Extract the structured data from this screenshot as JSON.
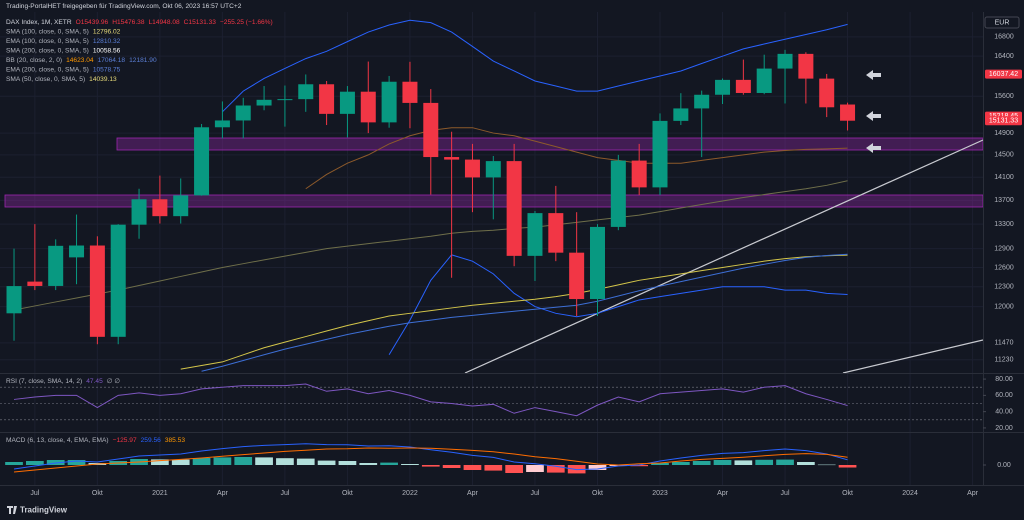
{
  "header": {
    "shared_by": "Trading-PortalHET freigegeben für TradingView.com, Okt 06, 2023 16:57 UTC+2",
    "currency": "EUR",
    "brand": "TradingView"
  },
  "chart_data": [
    {
      "type": "candlestick",
      "log_scale": true,
      "grid": true,
      "up_color": "#089981",
      "down_color": "#f23645",
      "categories": [
        null,
        "Jul",
        null,
        null,
        "Okt",
        null,
        null,
        "2021",
        null,
        null,
        "Apr",
        null,
        null,
        "Jul",
        null,
        null,
        "Okt",
        null,
        null,
        "2022",
        null,
        null,
        "Apr",
        null,
        null,
        "Jul",
        null,
        null,
        "Okt",
        null,
        null,
        "2023",
        null,
        null,
        "Apr",
        null,
        null,
        "Jul",
        null,
        null,
        "Okt",
        null,
        null,
        "2024",
        null,
        null,
        "Apr"
      ],
      "open": [
        11900,
        12380,
        12313,
        12760,
        12950,
        11556,
        13291,
        13719,
        13433,
        13786,
        15008,
        15136,
        15421,
        15531,
        15544,
        15835,
        15261,
        15689,
        15100,
        15885,
        15471,
        14461,
        14415,
        14098,
        14388,
        12784,
        13484,
        12835,
        12114,
        13254,
        14397,
        13924,
        15128,
        15365,
        15629,
        15922,
        15664,
        16148,
        16447,
        15947,
        15439.96,
        null,
        null,
        null,
        null,
        null,
        null
      ],
      "high": [
        12900,
        13300,
        13050,
        13460,
        13100,
        13300,
        13900,
        14130,
        14080,
        15070,
        15500,
        15570,
        15800,
        15810,
        16030,
        15900,
        15800,
        16290,
        16000,
        16285,
        15740,
        14925,
        14700,
        14480,
        14700,
        13520,
        13950,
        13500,
        13300,
        14500,
        14700,
        15270,
        15660,
        15710,
        15950,
        16330,
        16430,
        16530,
        16480,
        16040,
        15476.38,
        null,
        null,
        null,
        null,
        null,
        null
      ],
      "low": [
        11500,
        12250,
        12250,
        12340,
        11450,
        11450,
        13060,
        13310,
        13310,
        13780,
        14800,
        14800,
        15330,
        15020,
        15300,
        15050,
        14820,
        14900,
        15000,
        14990,
        13800,
        12439,
        13500,
        13380,
        12620,
        12390,
        12700,
        11860,
        11860,
        13200,
        13790,
        13790,
        15050,
        14460,
        15450,
        15630,
        15640,
        15460,
        15460,
        15200,
        14948.08,
        null,
        null,
        null,
        null,
        null,
        null
      ],
      "close": [
        12311,
        12313,
        12945,
        12950,
        11556,
        13291,
        13719,
        13433,
        13786,
        15008,
        15136,
        15421,
        15531,
        15544,
        15835,
        15261,
        15689,
        15100,
        15885,
        15471,
        14461,
        14415,
        14098,
        14388,
        12784,
        13484,
        12835,
        12114,
        13254,
        14397,
        13924,
        15128,
        15365,
        15629,
        15922,
        15664,
        16148,
        16447,
        15947,
        15387,
        15131.33,
        null,
        null,
        null,
        null,
        null,
        null
      ],
      "series": [
        {
          "color": "#2962ff",
          "values": [
            null,
            null,
            null,
            null,
            null,
            null,
            null,
            null,
            null,
            null,
            15300,
            15700,
            15950,
            16150,
            16350,
            16500,
            16700,
            16900,
            17050,
            17150,
            17100,
            16900,
            16600,
            16300,
            16100,
            15900,
            15800,
            15700,
            15700,
            15800,
            15900,
            16000,
            16100,
            16250,
            16400,
            16550,
            16650,
            16750,
            16850,
            16950,
            17064.18,
            null,
            null,
            null,
            null,
            null,
            null
          ]
        },
        {
          "color": "#2962ff",
          "values": [
            null,
            null,
            null,
            null,
            null,
            null,
            null,
            null,
            null,
            null,
            null,
            null,
            null,
            null,
            null,
            null,
            null,
            null,
            11300,
            11800,
            12400,
            12800,
            12700,
            12500,
            12200,
            12000,
            11900,
            11850,
            11900,
            12000,
            12100,
            12150,
            12200,
            12250,
            12300,
            12300,
            12300,
            12250,
            12250,
            12200,
            12181.9,
            null,
            null,
            null,
            null,
            null,
            null
          ]
        },
        {
          "color": "#8d5a2b",
          "values": [
            null,
            null,
            null,
            null,
            null,
            null,
            null,
            null,
            null,
            null,
            null,
            null,
            null,
            null,
            13900,
            14150,
            14350,
            14500,
            14700,
            14850,
            14950,
            15000,
            15000,
            14900,
            14850,
            14750,
            14650,
            14550,
            14450,
            14400,
            14350,
            14350,
            14350,
            14400,
            14450,
            14500,
            14550,
            14580,
            14600,
            14610,
            14623.04,
            null,
            null,
            null,
            null,
            null,
            null
          ]
        },
        {
          "color": "#d4c64a",
          "values": [
            null,
            null,
            null,
            null,
            null,
            null,
            null,
            null,
            11100,
            11150,
            11200,
            11300,
            11400,
            11480,
            11560,
            11640,
            11720,
            11790,
            11860,
            11900,
            11940,
            11980,
            12020,
            12050,
            12080,
            12110,
            12150,
            12200,
            12260,
            12330,
            12400,
            12450,
            12500,
            12550,
            12600,
            12650,
            12700,
            12740,
            12770,
            12785,
            12796.02,
            null,
            null,
            null,
            null,
            null,
            null
          ]
        },
        {
          "color": "#3d6fd6",
          "values": [
            null,
            null,
            null,
            null,
            null,
            null,
            null,
            null,
            null,
            11070,
            11140,
            11220,
            11300,
            11380,
            11450,
            11520,
            11590,
            11650,
            11710,
            11760,
            11800,
            11840,
            11870,
            11900,
            11930,
            11960,
            11990,
            12020,
            12080,
            12160,
            12240,
            12310,
            12380,
            12450,
            12520,
            12590,
            12650,
            12710,
            12760,
            12790,
            12810.32,
            null,
            null,
            null,
            null,
            null,
            null
          ]
        },
        {
          "color": "#6f6f4a",
          "values": [
            11950,
            12010,
            12070,
            12130,
            12190,
            12250,
            12320,
            12390,
            12460,
            12530,
            12600,
            12660,
            12720,
            12780,
            12840,
            12900,
            12940,
            12980,
            13020,
            13060,
            13100,
            13150,
            13180,
            13200,
            13230,
            13250,
            13290,
            13330,
            13370,
            13410,
            13450,
            13510,
            13570,
            13630,
            13690,
            13750,
            13800,
            13850,
            13900,
            13960,
            14039.13,
            null,
            null,
            null,
            null,
            null,
            null
          ]
        }
      ],
      "ylim": [
        11060,
        17590
      ],
      "yticks": [
        11230,
        11470,
        12000,
        12300,
        12600,
        12900,
        13300,
        13700,
        14100,
        14500,
        14900,
        15600,
        16400,
        16800
      ],
      "price_tags": [
        {
          "value": 16037.42,
          "color": "#f23645"
        },
        {
          "value": 15218.45,
          "color": "#f23645"
        },
        {
          "value": 15131.33,
          "color": "#f23645"
        }
      ],
      "legend": [
        [
          {
            "text": "DAX Index, 1M, XETR",
            "color": "#d1d4dc"
          },
          {
            "text": "O15439.96",
            "color": "#f23645"
          },
          {
            "text": "H15476.38",
            "color": "#f23645"
          },
          {
            "text": "L14948.08",
            "color": "#f23645"
          },
          {
            "text": "C15131.33",
            "color": "#f23645"
          },
          {
            "text": "−255.25 (−1.66%)",
            "color": "#f23645"
          }
        ],
        [
          {
            "text": "SMA (100, close, 0, SMA, 5)",
            "color": "#b2b5be"
          },
          {
            "text": "12796.02",
            "color": "#e8dc7a"
          }
        ],
        [
          {
            "text": "EMA (100, close, 0, SMA, 5)",
            "color": "#b2b5be"
          },
          {
            "text": "12810.32",
            "color": "#5b7fd6"
          }
        ],
        [
          {
            "text": "SMA (200, close, 0, SMA, 5)",
            "color": "#b2b5be"
          },
          {
            "text": "10058.56",
            "color": "#ffffff"
          }
        ],
        [
          {
            "text": "BB (20, close, 2, 0)",
            "color": "#b2b5be"
          },
          {
            "text": "14623.04",
            "color": "#ff9800"
          },
          {
            "text": "17064.18",
            "color": "#5b7fd6"
          },
          {
            "text": "12181.90",
            "color": "#5b7fd6"
          }
        ],
        [
          {
            "text": "EMA (200, close, 0, SMA, 5)",
            "color": "#b2b5be"
          },
          {
            "text": "10578.75",
            "color": "#5b7fd6"
          }
        ],
        [
          {
            "text": "SMA (50, close, 0, SMA, 5)",
            "color": "#b2b5be"
          },
          {
            "text": "14039.13",
            "color": "#e8dc7a"
          }
        ]
      ]
    },
    {
      "type": "line",
      "color": "#7e57c2",
      "values": [
        55,
        58,
        60,
        60,
        45,
        60,
        63,
        60,
        62,
        68,
        70,
        72,
        72,
        72,
        74,
        65,
        68,
        62,
        66,
        60,
        52,
        50,
        47,
        49,
        38,
        45,
        40,
        35,
        48,
        58,
        52,
        62,
        64,
        66,
        68,
        64,
        70,
        72,
        62,
        55,
        47.45,
        null,
        null,
        null,
        null,
        null,
        null
      ],
      "ylim": [
        15,
        86.25
      ],
      "yticks": [
        {
          "value": 80,
          "label": "80.00"
        },
        {
          "value": 60,
          "label": "60.00"
        },
        {
          "value": 40,
          "label": "40.00"
        },
        {
          "value": 20,
          "label": "20.00"
        }
      ],
      "levels": [
        70,
        50,
        30
      ],
      "legend": [
        {
          "text": "RSI (7, close, SMA, 14, 2)",
          "color": "#b2b5be"
        },
        {
          "text": "47.45",
          "color": "#7e57c2"
        },
        {
          "text": "∅ ∅",
          "color": "#b2b5be"
        }
      ]
    },
    {
      "type": "histogram",
      "values": [
        150,
        200,
        250,
        250,
        100,
        200,
        300,
        280,
        270,
        350,
        380,
        400,
        380,
        340,
        320,
        220,
        200,
        100,
        120,
        50,
        -80,
        -150,
        -250,
        -280,
        -400,
        -350,
        -380,
        -420,
        -250,
        -50,
        -60,
        100,
        150,
        200,
        250,
        230,
        260,
        270,
        150,
        20,
        -125.97,
        null,
        null,
        null,
        null,
        null,
        null
      ],
      "colors": {
        "rising_up": "#26a69a",
        "falling_up": "#b2dfdb",
        "falling_down": "#ff5252",
        "rising_down": "#ffcdd2"
      },
      "series": [
        {
          "color": "#2962ff",
          "values": [
            -200,
            -50,
            100,
            200,
            150,
            300,
            450,
            500,
            550,
            700,
            820,
            920,
            980,
            1020,
            1060,
            1020,
            1010,
            950,
            960,
            900,
            760,
            640,
            480,
            380,
            150,
            60,
            -60,
            -230,
            -200,
            -50,
            0,
            200,
            350,
            480,
            580,
            620,
            720,
            800,
            720,
            550,
            259.56,
            null,
            null,
            null,
            null,
            null,
            null
          ]
        },
        {
          "color": "#ff6d00",
          "values": [
            -350,
            -250,
            -150,
            -50,
            50,
            100,
            150,
            220,
            280,
            350,
            440,
            520,
            600,
            680,
            740,
            800,
            810,
            850,
            840,
            850,
            840,
            790,
            730,
            660,
            550,
            410,
            320,
            190,
            50,
            0,
            60,
            100,
            200,
            280,
            330,
            390,
            460,
            530,
            570,
            530,
            385.53,
            null,
            null,
            null,
            null,
            null,
            null
          ]
        }
      ],
      "ylim": [
        -1300,
        1600
      ],
      "yticks": [
        {
          "value": 0,
          "label": "0.00"
        }
      ],
      "legend": [
        {
          "text": "MACD (6, 13, close, 4, EMA, EMA)",
          "color": "#b2b5be"
        },
        {
          "text": "−125.97",
          "color": "#f23645"
        },
        {
          "text": "259.56",
          "color": "#2962ff"
        },
        {
          "text": "385.53",
          "color": "#ff9800"
        }
      ]
    }
  ]
}
